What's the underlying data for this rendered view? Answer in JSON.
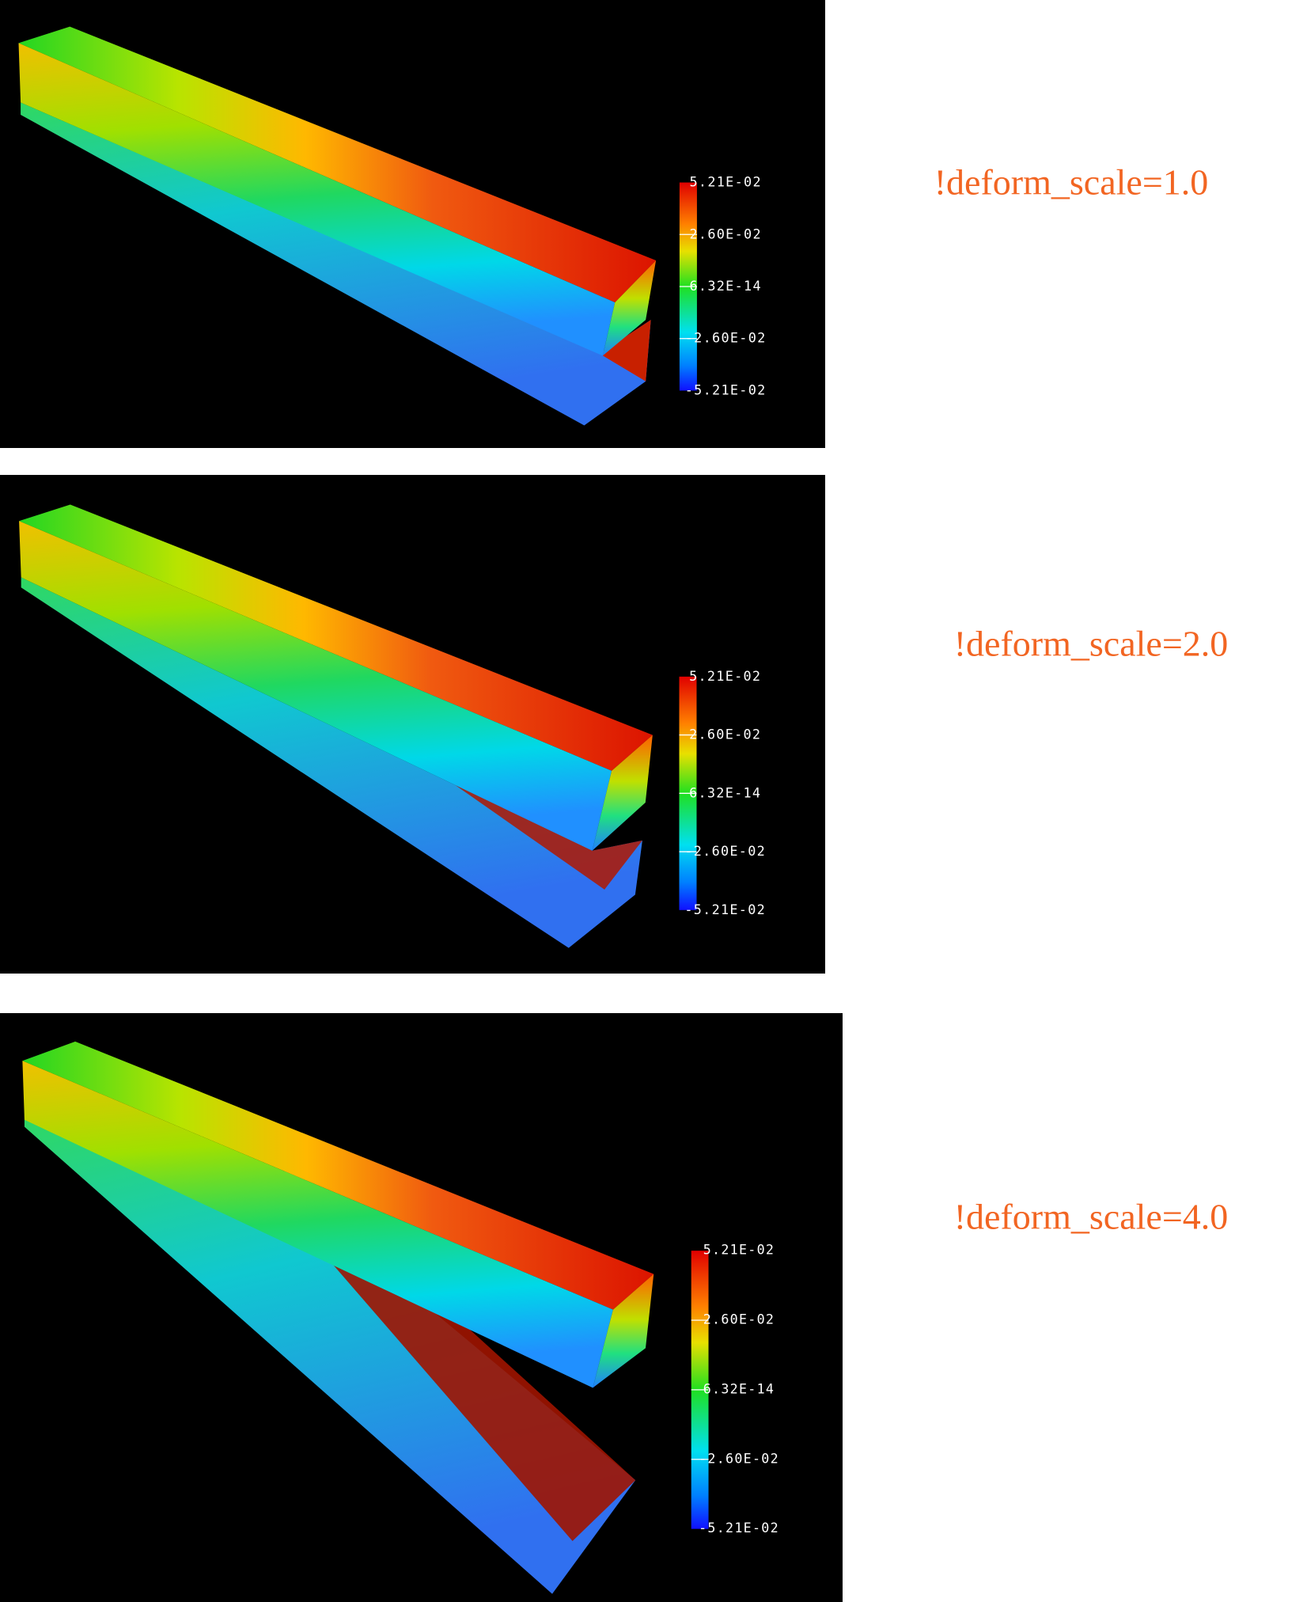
{
  "panels": [
    {
      "legend": [
        "5.21E-02",
        "2.60E-02",
        "6.32E-14",
        "-2.60E-02",
        "-5.21E-02"
      ],
      "caption": "!deform_scale=1.0"
    },
    {
      "legend": [
        "5.21E-02",
        "2.60E-02",
        "6.32E-14",
        "-2.60E-02",
        "-5.21E-02"
      ],
      "caption": "!deform_scale=2.0"
    },
    {
      "legend": [
        "5.21E-02",
        "2.60E-02",
        "6.32E-14",
        "-2.60E-02",
        "-5.21E-02"
      ],
      "caption": "!deform_scale=4.0"
    }
  ]
}
